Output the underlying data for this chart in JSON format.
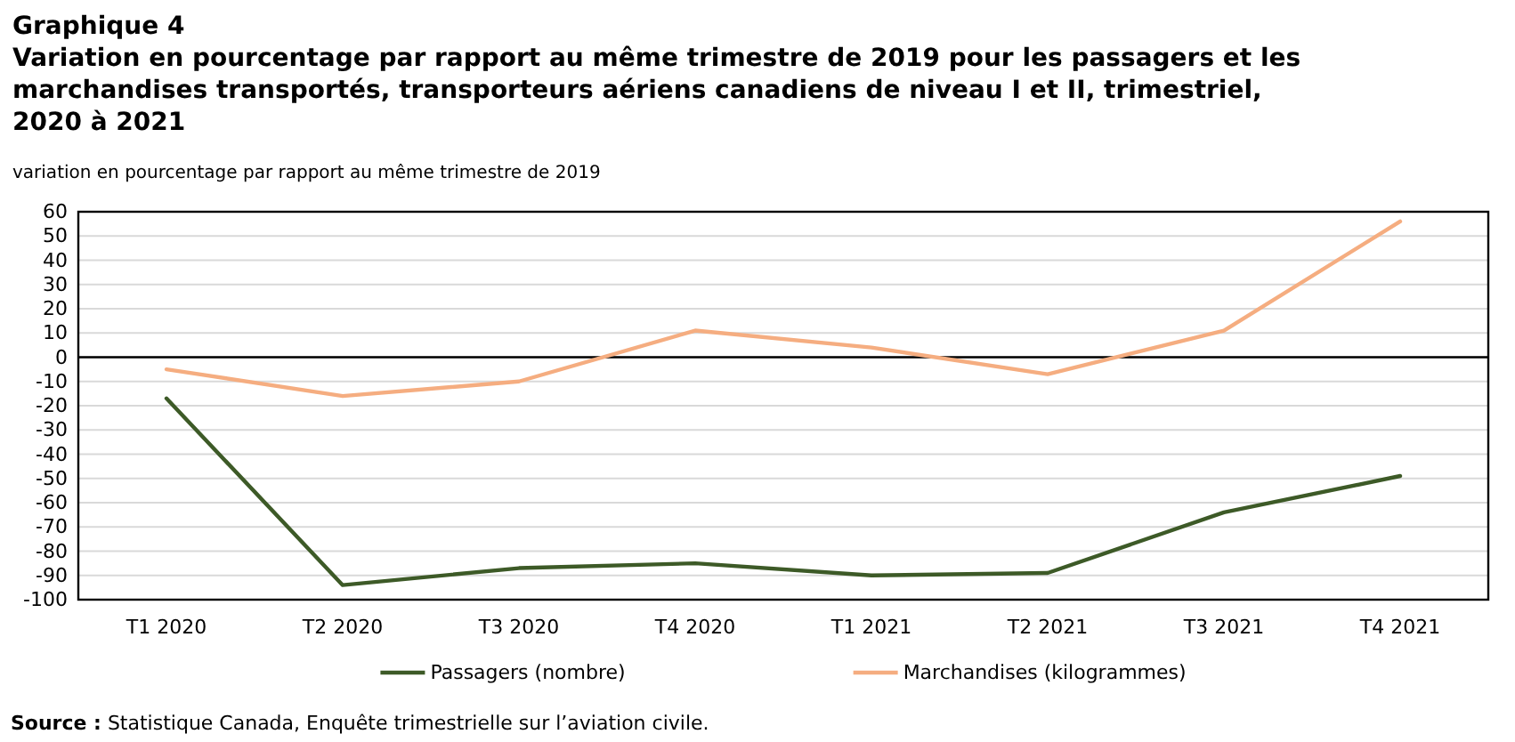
{
  "chart_data": {
    "type": "line",
    "title": "Graphique 4",
    "subtitle": "Variation en pourcentage par rapport au même trimestre de 2019 pour les passagers et les marchandises transportés, transporteurs aériens canadiens de niveau I et II, trimestriel, 2020 à 2021",
    "ylabel": "variation en pourcentage par rapport au même trimestre de 2019",
    "categories": [
      "T1 2020",
      "T2 2020",
      "T3 2020",
      "T4 2020",
      "T1 2021",
      "T2 2021",
      "T3 2021",
      "T4 2021"
    ],
    "series": [
      {
        "name": "Passagers (nombre)",
        "color": "#3d5a27",
        "values": [
          -17,
          -94,
          -87,
          -85,
          -90,
          -89,
          -64,
          -49
        ]
      },
      {
        "name": "Marchandises (kilogrammes)",
        "color": "#f5ad80",
        "values": [
          -5,
          -16,
          -10,
          11,
          4,
          -7,
          11,
          56
        ]
      }
    ],
    "ylim": [
      -100,
      60
    ],
    "yticks": [
      -100,
      -90,
      -80,
      -70,
      -60,
      -50,
      -40,
      -30,
      -20,
      -10,
      0,
      10,
      20,
      30,
      40,
      50,
      60
    ],
    "grid": "y",
    "legend": "bottom",
    "ref_lines": [
      {
        "axis": "y",
        "value": 0,
        "color": "#000000"
      }
    ],
    "annotations": [
      "Source : Statistique Canada, Enquête trimestrielle sur l’aviation civile."
    ]
  }
}
